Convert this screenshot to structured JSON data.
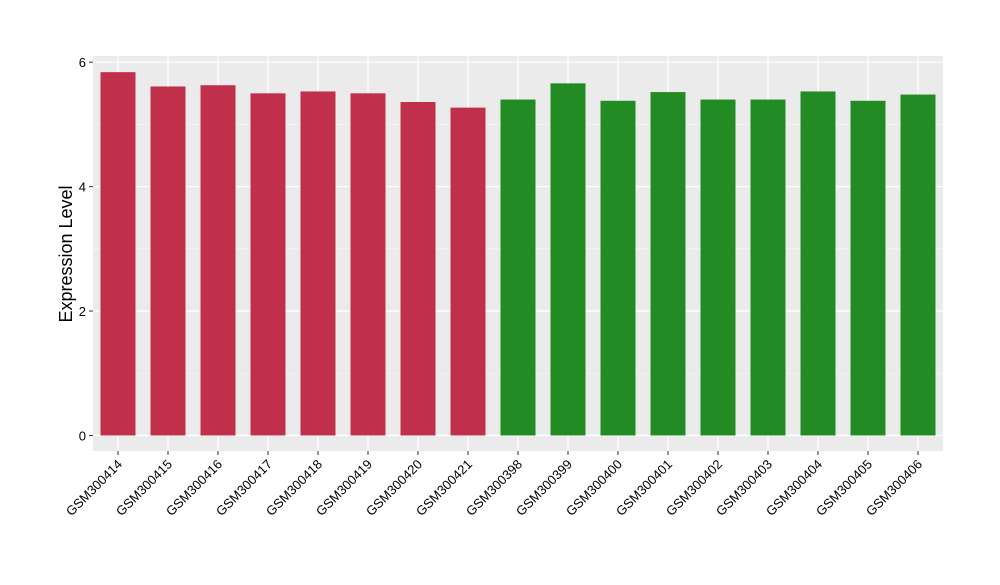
{
  "colors": {
    "panel_bg": "#ebebeb",
    "grid_major": "#ffffff",
    "grid_minor": "#f5f5f5",
    "axis_text": "#000000",
    "tick_mark": "#333333"
  },
  "chart_data": {
    "type": "bar",
    "title": "",
    "xlabel": "",
    "ylabel": "Expression Level",
    "ylim": [
      -0.25,
      6.1
    ],
    "yticks": [
      0,
      2,
      4,
      6
    ],
    "grid": true,
    "legend": "none",
    "categories": [
      "GSM300414",
      "GSM300415",
      "GSM300416",
      "GSM300417",
      "GSM300418",
      "GSM300419",
      "GSM300420",
      "GSM300421",
      "GSM300398",
      "GSM300399",
      "GSM300400",
      "GSM300401",
      "GSM300402",
      "GSM300403",
      "GSM300404",
      "GSM300405",
      "GSM300406"
    ],
    "values": [
      5.84,
      5.61,
      5.63,
      5.5,
      5.53,
      5.5,
      5.36,
      5.27,
      5.4,
      5.66,
      5.38,
      5.52,
      5.4,
      5.4,
      5.53,
      5.38,
      5.48
    ],
    "bar_colors": [
      "#c0304a",
      "#c0304a",
      "#c0304a",
      "#c0304a",
      "#c0304a",
      "#c0304a",
      "#c0304a",
      "#c0304a",
      "#238b23",
      "#238b23",
      "#238b23",
      "#238b23",
      "#238b23",
      "#238b23",
      "#238b23",
      "#238b23",
      "#238b23"
    ]
  }
}
